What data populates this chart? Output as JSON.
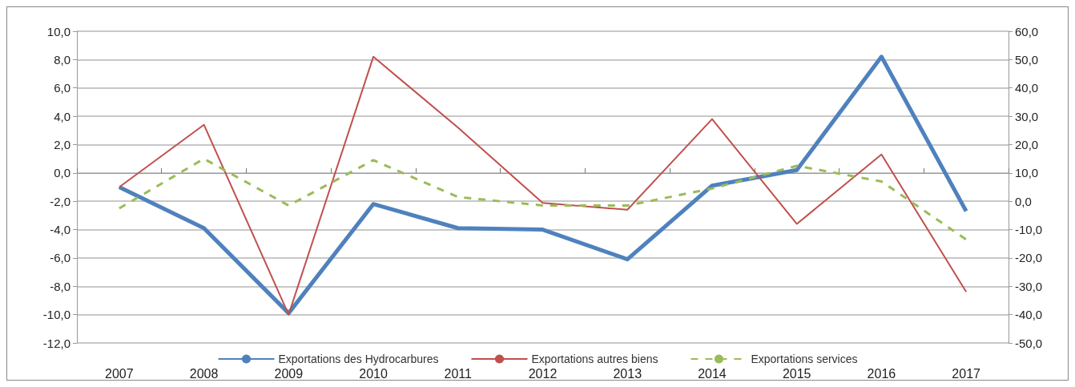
{
  "chart_data": {
    "type": "line",
    "categories": [
      "2007",
      "2008",
      "2009",
      "2010",
      "2011",
      "2012",
      "2013",
      "2014",
      "2015",
      "2016",
      "2017"
    ],
    "series": [
      {
        "name": "Exportations des Hydrocarbures",
        "color": "#4f81bd",
        "values": [
          -1.0,
          -3.9,
          -9.9,
          -2.2,
          -3.9,
          -4.0,
          -6.1,
          -0.9,
          0.2,
          8.2,
          -2.7
        ]
      },
      {
        "name": "Exportations autres biens",
        "color": "#c0504d",
        "axis": "y2",
        "values": [
          5,
          27,
          -40,
          51,
          26,
          -0.6,
          -3,
          29,
          -8,
          16.5,
          -32
        ]
      },
      {
        "name": "Exportations services",
        "color": "#9bbb59",
        "line_style": "dashed",
        "values": [
          -2.5,
          1.0,
          -2.3,
          0.9,
          -1.7,
          -2.3,
          -2.3,
          -1.1,
          0.5,
          -0.6,
          -4.7
        ]
      }
    ],
    "ylim": [
      -12,
      10
    ],
    "yticks": [
      {
        "value": -12,
        "label": "-12,0"
      },
      {
        "value": -10,
        "label": "-10,0"
      },
      {
        "value": -8,
        "label": "-8,0"
      },
      {
        "value": -6,
        "label": "-6,0"
      },
      {
        "value": -4,
        "label": "-4,0"
      },
      {
        "value": -2,
        "label": "-2,0"
      },
      {
        "value": 0,
        "label": "0,0"
      },
      {
        "value": 2,
        "label": "2,0"
      },
      {
        "value": 4,
        "label": "4,0"
      },
      {
        "value": 6,
        "label": "6,0"
      },
      {
        "value": 8,
        "label": "8,0"
      },
      {
        "value": 10,
        "label": "10,0"
      }
    ],
    "y2lim": [
      -50,
      60
    ],
    "y2ticks": [
      {
        "value": -50,
        "label": "-50,0"
      },
      {
        "value": -40,
        "label": "-40,0"
      },
      {
        "value": -30,
        "label": "-30,0"
      },
      {
        "value": -20,
        "label": "-20,0"
      },
      {
        "value": -10,
        "label": "-10,0"
      },
      {
        "value": 0,
        "label": "0,0"
      },
      {
        "value": 10,
        "label": "10,0"
      },
      {
        "value": 20,
        "label": "20,0"
      },
      {
        "value": 30,
        "label": "30,0"
      },
      {
        "value": 40,
        "label": "40,0"
      },
      {
        "value": 50,
        "label": "50,0"
      },
      {
        "value": 60,
        "label": "60,0"
      }
    ],
    "grid": "y",
    "legend": "bottom",
    "marker": "none"
  }
}
